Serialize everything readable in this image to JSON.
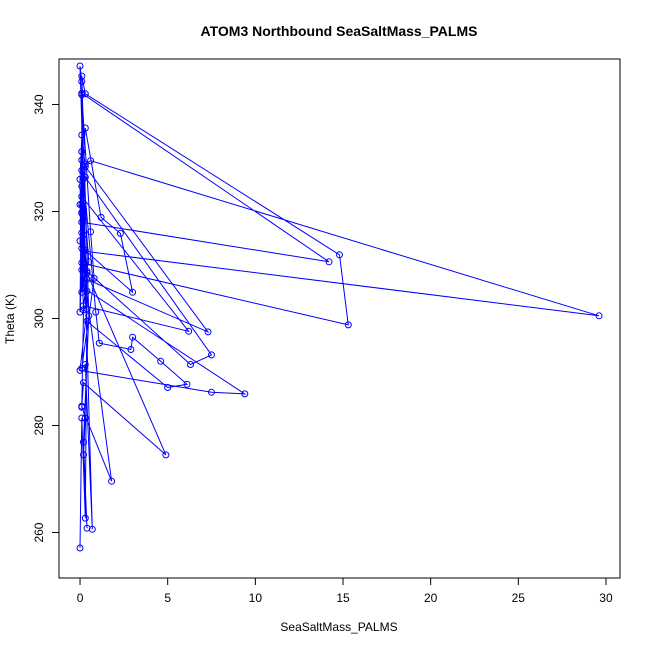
{
  "chart_data": {
    "type": "line",
    "title": "ATOM3 Northbound SeaSaltMass_PALMS",
    "xlabel": "SeaSaltMass_PALMS",
    "ylabel": "Theta (K)",
    "xlim": [
      -1.2,
      30.8
    ],
    "ylim": [
      251.5,
      348.5
    ],
    "xticks": [
      0,
      5,
      10,
      15,
      20,
      25,
      30
    ],
    "yticks": [
      260,
      280,
      300,
      320,
      340
    ],
    "grid": false,
    "legend": "none",
    "color": "#0000FF",
    "marker": "open-circle",
    "series": [
      {
        "points": [
          [
            0.0,
            257.1
          ],
          [
            0.1,
            281.4
          ],
          [
            0.3,
            262.7
          ],
          [
            0.4,
            305.1
          ],
          [
            0.2,
            320.3
          ],
          [
            0.1,
            341.8
          ],
          [
            0.6,
            316.2
          ],
          [
            0.8,
            307.5
          ],
          [
            0.1,
            290.7
          ],
          [
            0.3,
            291.4
          ],
          [
            0.7,
            260.6
          ],
          [
            0.2,
            318.5
          ],
          [
            0.1,
            329.6
          ],
          [
            0.9,
            301.2
          ],
          [
            1.1,
            295.4
          ],
          [
            2.9,
            294.2
          ],
          [
            3.0,
            296.5
          ],
          [
            4.6,
            292.0
          ],
          [
            6.1,
            287.7
          ],
          [
            5.0,
            287.1
          ],
          [
            0.4,
            299.5
          ],
          [
            0.2,
            307.4
          ],
          [
            0.5,
            310.6
          ],
          [
            0.1,
            327.7
          ],
          [
            0.3,
            335.6
          ],
          [
            1.2,
            318.9
          ],
          [
            2.3,
            315.9
          ],
          [
            3.0,
            304.9
          ],
          [
            0.3,
            312.7
          ],
          [
            0.2,
            326.1
          ],
          [
            0.0,
            347.2
          ],
          [
            0.1,
            344.3
          ],
          [
            0.1,
            331.2
          ],
          [
            0.1,
            321.3
          ],
          [
            0.2,
            315.6
          ],
          [
            0.4,
            308.8
          ],
          [
            6.3,
            291.4
          ],
          [
            7.5,
            293.2
          ],
          [
            0.3,
            326.4
          ],
          [
            0.1,
            319.8
          ],
          [
            0.2,
            310.2
          ],
          [
            0.4,
            301.8
          ],
          [
            0.0,
            290.3
          ],
          [
            7.5,
            286.2
          ],
          [
            9.4,
            285.9
          ],
          [
            0.2,
            305.7
          ],
          [
            0.1,
            313.1
          ],
          [
            0.4,
            308.5
          ],
          [
            4.9,
            274.5
          ],
          [
            0.2,
            288.0
          ],
          [
            0.1,
            283.6
          ],
          [
            0.3,
            281.4
          ],
          [
            0.2,
            274.5
          ],
          [
            0.4,
            260.8
          ],
          [
            0.2,
            276.9
          ],
          [
            0.5,
            300.5
          ],
          [
            0.1,
            345.3
          ],
          [
            0.3,
            342.0
          ],
          [
            14.8,
            311.9
          ],
          [
            15.3,
            298.8
          ],
          [
            0.3,
            310.2
          ],
          [
            0.1,
            316.0
          ],
          [
            0.2,
            320.0
          ],
          [
            0.3,
            328.4
          ],
          [
            7.3,
            297.5
          ],
          [
            0.4,
            307.3
          ],
          [
            0.2,
            302.4
          ],
          [
            6.2,
            297.6
          ],
          [
            0.1,
            322.8
          ],
          [
            0.3,
            328.8
          ],
          [
            0.6,
            329.5
          ],
          [
            29.6,
            300.5
          ],
          [
            0.2,
            312.6
          ],
          [
            0.1,
            342.1
          ],
          [
            14.2,
            310.6
          ],
          [
            0.1,
            318.0
          ],
          [
            0.2,
            309.2
          ],
          [
            1.8,
            269.6
          ],
          [
            0.1,
            283.4
          ],
          [
            0.2,
            301.6
          ],
          [
            0.1,
            310.4
          ],
          [
            0.0,
            314.5
          ],
          [
            0.1,
            319.7
          ],
          [
            0.1,
            324.7
          ],
          [
            0.1,
            309.1
          ],
          [
            0.0,
            301.2
          ],
          [
            0.1,
            334.3
          ],
          [
            0.0,
            326.0
          ],
          [
            0.1,
            304.9
          ],
          [
            0.0,
            321.3
          ]
        ]
      }
    ]
  }
}
